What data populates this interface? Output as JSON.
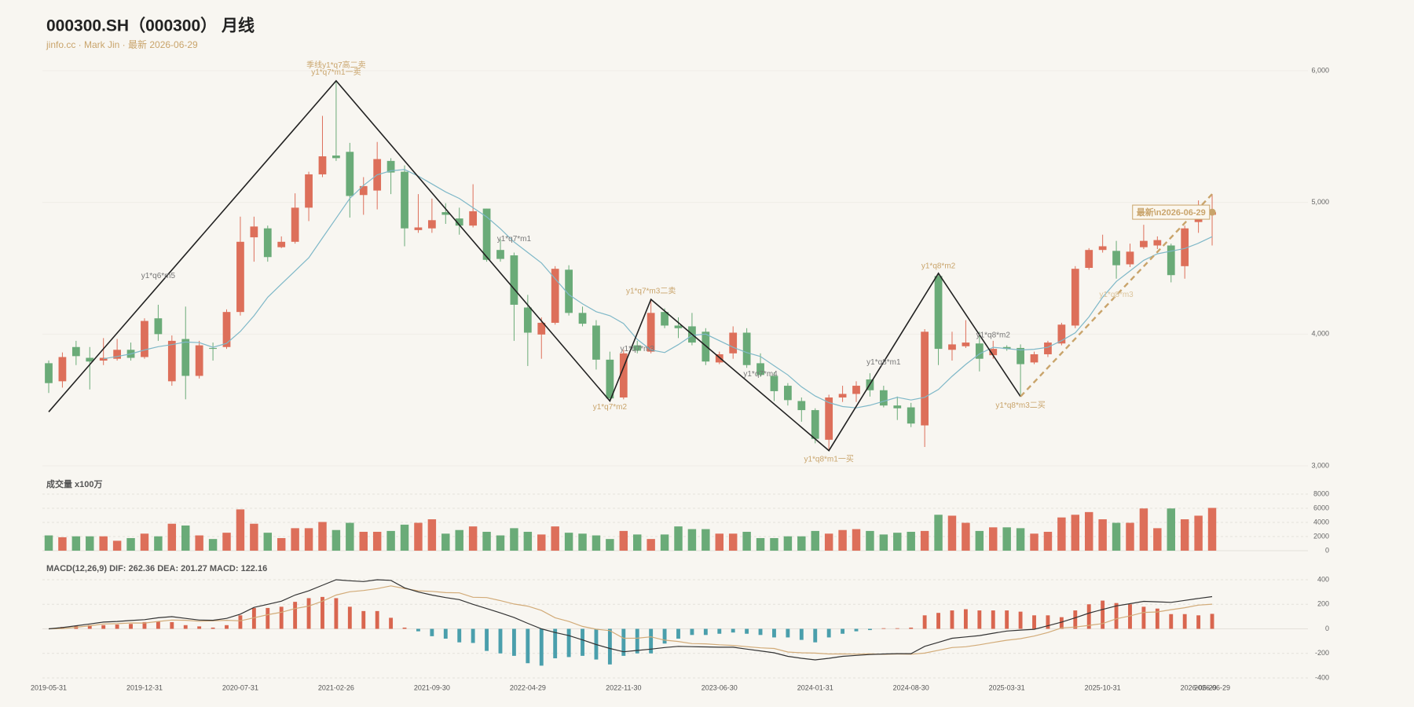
{
  "chart_data": [
    {
      "type": "candlestick",
      "title": "000300.SH（000300） 月线",
      "subtitle": "jinfo.cc · Mark Jin · 最新 2026-06-29",
      "categories": [
        "2019-05-31",
        null,
        null,
        null,
        null,
        null,
        null,
        "2019-12-31",
        null,
        null,
        null,
        null,
        null,
        null,
        "2020-07-31",
        null,
        null,
        null,
        null,
        null,
        null,
        "2021-02-26",
        null,
        null,
        null,
        null,
        null,
        null,
        "2021-09-30",
        null,
        null,
        null,
        null,
        null,
        null,
        "2022-04-29",
        null,
        null,
        null,
        null,
        null,
        null,
        "2022-11-30",
        null,
        null,
        null,
        null,
        null,
        null,
        "2023-06-30",
        null,
        null,
        null,
        null,
        null,
        null,
        "2024-01-31",
        null,
        null,
        null,
        null,
        null,
        null,
        "2024-08-30",
        null,
        null,
        null,
        null,
        null,
        null,
        "2025-03-31",
        null,
        null,
        null,
        null,
        null,
        null,
        "2025-10-31",
        null,
        null,
        null,
        null,
        null,
        null,
        "2026-05-29",
        "2026-06-29"
      ],
      "open": [
        3779,
        3642,
        3902,
        3820,
        3799,
        3813,
        3881,
        3826,
        4120,
        3642,
        3963,
        3683,
        3895,
        3902,
        4168,
        4735,
        4803,
        4660,
        4701,
        4960,
        5213,
        5356,
        5384,
        5056,
        5090,
        5315,
        5233,
        4790,
        4803,
        4926,
        4878,
        4824,
        4953,
        4639,
        4598,
        4202,
        3997,
        4086,
        4489,
        4161,
        4065,
        3806,
        3519,
        3915,
        3867,
        4168,
        4065,
        4059,
        4018,
        3785,
        3854,
        4011,
        3779,
        3683,
        3608,
        3492,
        3423,
        3198,
        3519,
        3546,
        3656,
        3574,
        3458,
        3444,
        3307,
        4441,
        3881,
        3908,
        3929,
        3840,
        3902,
        3895,
        3785,
        3847,
        3929,
        4065,
        4503,
        4639,
        4632,
        4530,
        4660,
        4673,
        4673,
        4516,
        4851,
        4906
      ],
      "high": [
        3800,
        3861,
        3949,
        3902,
        3970,
        3963,
        3936,
        4120,
        4223,
        3990,
        4209,
        3949,
        3936,
        4188,
        4892,
        4892,
        4824,
        4742,
        5069,
        5233,
        5657,
        5923,
        5452,
        5192,
        5459,
        5336,
        5281,
        5063,
        5029,
        4994,
        4960,
        5138,
        4953,
        4721,
        4619,
        4298,
        4127,
        4516,
        4523,
        4209,
        4106,
        3867,
        3881,
        3949,
        4264,
        4195,
        4127,
        4161,
        4045,
        3867,
        4059,
        4045,
        3854,
        3710,
        3628,
        3519,
        3437,
        3540,
        3608,
        3642,
        3703,
        3608,
        3526,
        3478,
        4038,
        4462,
        4018,
        4106,
        4018,
        3949,
        3915,
        3922,
        3867,
        3949,
        4086,
        4516,
        4653,
        4755,
        4708,
        4687,
        4830,
        4742,
        4687,
        4824,
        5015,
        5063
      ],
      "low": [
        3553,
        3594,
        3765,
        3580,
        3765,
        3799,
        3799,
        3813,
        3949,
        3608,
        3505,
        3663,
        3799,
        3888,
        4141,
        4550,
        4550,
        4653,
        4687,
        4858,
        5192,
        5315,
        4885,
        4906,
        4947,
        5063,
        4667,
        4769,
        4769,
        4837,
        4755,
        4810,
        4550,
        4550,
        3949,
        3758,
        3813,
        4072,
        4141,
        4059,
        3731,
        3492,
        3505,
        3854,
        3854,
        4045,
        3970,
        3915,
        3765,
        3772,
        3813,
        3744,
        3676,
        3492,
        3458,
        3335,
        3171,
        3116,
        3485,
        3485,
        3526,
        3444,
        3348,
        3294,
        3143,
        3765,
        3799,
        3895,
        3717,
        3813,
        3874,
        3540,
        3772,
        3826,
        3915,
        4045,
        4489,
        4619,
        4421,
        4509,
        4646,
        4646,
        4393,
        4421,
        4769,
        4673
      ],
      "close": [
        3628,
        3826,
        3833,
        3792,
        3820,
        3881,
        3820,
        4100,
        4000,
        3949,
        3683,
        3915,
        3888,
        4168,
        4701,
        4817,
        4585,
        4701,
        4960,
        5213,
        5350,
        5336,
        5049,
        5124,
        5329,
        5227,
        4803,
        4810,
        4865,
        4906,
        4824,
        4933,
        4564,
        4571,
        4223,
        4011,
        4086,
        4496,
        4161,
        4079,
        3806,
        3512,
        3854,
        3874,
        4161,
        4065,
        4045,
        3936,
        3792,
        3847,
        4011,
        3765,
        3690,
        3567,
        3499,
        3423,
        3205,
        3519,
        3546,
        3608,
        3574,
        3458,
        3437,
        3321,
        4018,
        3888,
        3922,
        3936,
        3813,
        3888,
        3888,
        3772,
        3847,
        3936,
        4072,
        4496,
        4639,
        4667,
        4523,
        4626,
        4708,
        4714,
        4448,
        4803,
        4892,
        4926
      ],
      "ma": [
        null,
        null,
        null,
        null,
        3813,
        3830,
        3850,
        3880,
        3905,
        3920,
        3940,
        3935,
        3900,
        3930,
        4020,
        4140,
        4280,
        4380,
        4480,
        4580,
        4730,
        4880,
        5030,
        5130,
        5210,
        5240,
        5250,
        5200,
        5140,
        5080,
        5030,
        4960,
        4890,
        4800,
        4700,
        4620,
        4540,
        4420,
        4300,
        4230,
        4170,
        4140,
        4080,
        3960,
        3880,
        3860,
        3920,
        3990,
        4000,
        3950,
        3900,
        3860,
        3830,
        3760,
        3690,
        3600,
        3530,
        3480,
        3450,
        3440,
        3460,
        3490,
        3520,
        3500,
        3520,
        3580,
        3680,
        3770,
        3850,
        3900,
        3890,
        3880,
        3885,
        3900,
        3950,
        4010,
        4130,
        4280,
        4400,
        4480,
        4560,
        4610,
        4630,
        4650,
        4690,
        4740
      ],
      "up_color": "#dd6f5a",
      "down_color": "#6aab78",
      "ma_color": "#7fb8c8",
      "ylim": [
        3000,
        6000
      ],
      "yticks": [
        {
          "value": 3000,
          "label": "3,000"
        },
        {
          "value": 4000,
          "label": "4,000"
        },
        {
          "value": 5000,
          "label": "5,000"
        },
        {
          "value": 6000,
          "label": "6,000"
        }
      ],
      "zigzag": [
        {
          "index": 0,
          "price": 3410
        },
        {
          "index": 21,
          "price": 5923
        },
        {
          "index": 41,
          "price": 3492
        },
        {
          "index": 44,
          "price": 4264
        },
        {
          "index": 57,
          "price": 3116
        },
        {
          "index": 65,
          "price": 4462
        },
        {
          "index": 71,
          "price": 3526
        }
      ],
      "zigzag_color": "#222222",
      "trend": [
        {
          "index": 71,
          "price": 3526
        },
        {
          "index": 85,
          "price": 5063
        }
      ],
      "trend_color": "#c9a46b",
      "annotations": [
        {
          "text": "季线y1*q7高二卖",
          "index": 21,
          "price": 6040,
          "color": "#c9a46b"
        },
        {
          "text": "y1*q7*m1一卖",
          "index": 21,
          "price": 5985,
          "color": "#c9a46b"
        },
        {
          "text": "y1*q6*m5",
          "index": 8,
          "price": 4441,
          "color": "#777777"
        },
        {
          "text": "y1*q7*m1",
          "index": 34,
          "price": 4721,
          "color": "#777777"
        },
        {
          "text": "y1*q7*m3二卖",
          "index": 44,
          "price": 4325,
          "color": "#c9a46b"
        },
        {
          "text": "y1*q7*m2",
          "index": 41,
          "price": 3444,
          "color": "#c9a46b"
        },
        {
          "text": "y1*q7*m3",
          "index": 43,
          "price": 3888,
          "color": "#777777"
        },
        {
          "text": "y1*q7*m4",
          "index": 52,
          "price": 3697,
          "color": "#777777"
        },
        {
          "text": "y1*q8*m1",
          "index": 61,
          "price": 3785,
          "color": "#777777"
        },
        {
          "text": "y1*q8*m1一买",
          "index": 57,
          "price": 3048,
          "color": "#c9a46b"
        },
        {
          "text": "y1*q8*m2",
          "index": 65,
          "price": 4516,
          "color": "#c9a46b"
        },
        {
          "text": "y1*q8*m2",
          "index": 69,
          "price": 3990,
          "color": "#777777"
        },
        {
          "text": "y1*q8*m3二买",
          "index": 71,
          "price": 3458,
          "color": "#c9a46b"
        },
        {
          "text": "y1*q8*m3",
          "index": 78,
          "price": 4298,
          "color": "#dcc59c"
        }
      ],
      "latest": {
        "text": "最新\\n2026-06-29",
        "index": 82,
        "price": 4926,
        "color": "#c9a46b"
      }
    },
    {
      "type": "bar",
      "title": "成交量 x100万",
      "values": [
        2160,
        1900,
        2030,
        2030,
        2030,
        1400,
        1780,
        2410,
        2030,
        3810,
        3560,
        2160,
        1650,
        2540,
        5840,
        3810,
        2540,
        1780,
        3180,
        3180,
        4060,
        2920,
        3940,
        2670,
        2670,
        2790,
        3680,
        3940,
        4440,
        2410,
        2920,
        3430,
        2670,
        2160,
        3180,
        2670,
        2290,
        3430,
        2540,
        2410,
        2160,
        1650,
        2790,
        2290,
        1650,
        2290,
        3430,
        3050,
        3050,
        2410,
        2410,
        2670,
        1780,
        1780,
        2030,
        2030,
        2790,
        2410,
        2920,
        3050,
        2790,
        2290,
        2540,
        2670,
        2790,
        5080,
        4950,
        3940,
        2790,
        3300,
        3300,
        3180,
        2410,
        2670,
        4700,
        5080,
        5460,
        4440,
        3940,
        3940,
        5970,
        3180,
        5970,
        4440,
        4950,
        6050
      ],
      "up_color": "#dd6f5a",
      "down_color": "#6aab78",
      "ylim": [
        0,
        8000
      ],
      "yticks": [
        0,
        2000,
        4000,
        6000,
        8000
      ],
      "grid": true
    },
    {
      "type": "macd",
      "title": "MACD(12,26,9) DIF: 262.36 DEA: 201.27 MACD: 122.16",
      "dif": [
        0,
        10,
        25,
        40,
        55,
        60,
        68,
        75,
        90,
        99,
        85,
        72,
        70,
        85,
        120,
        175,
        200,
        225,
        275,
        310,
        355,
        400,
        392,
        385,
        400,
        395,
        334,
        300,
        275,
        255,
        238,
        200,
        165,
        130,
        92,
        45,
        0,
        -30,
        -55,
        -90,
        -128,
        -160,
        -187,
        -176,
        -165,
        -152,
        -143,
        -145,
        -147,
        -150,
        -150,
        -165,
        -180,
        -195,
        -224,
        -240,
        -253,
        -240,
        -224,
        -216,
        -209,
        -205,
        -202,
        -202,
        -143,
        -110,
        -77,
        -66,
        -55,
        -36,
        -18,
        -10,
        -4,
        25,
        55,
        90,
        128,
        158,
        187,
        205,
        224,
        220,
        216,
        232,
        248,
        262.36
      ],
      "dea": [
        0,
        2.5,
        12.5,
        25,
        40,
        42.5,
        48,
        47.5,
        60,
        71.5,
        70,
        62,
        65,
        70,
        65,
        90,
        115,
        135,
        165,
        185,
        225,
        275,
        302,
        312.5,
        327.5,
        350,
        329,
        310,
        305,
        295,
        293,
        257.5,
        255,
        230,
        202,
        185,
        150,
        90,
        60,
        20,
        -3,
        -15,
        -77,
        -76,
        -65,
        -92,
        -103,
        -120,
        -122,
        -130,
        -135,
        -145,
        -155,
        -160,
        -189,
        -195,
        -198,
        -205,
        -204,
        -206,
        -204,
        -207.5,
        -204.5,
        -207,
        -198,
        -175,
        -152,
        -146,
        -130,
        -111,
        -93,
        -80,
        -59,
        -30,
        7.5,
        15,
        28,
        43,
        82,
        105,
        134,
        137.5,
        156,
        172,
        193,
        201.27
      ],
      "hist": [
        0,
        15,
        25,
        30,
        30,
        35,
        40,
        55,
        60,
        55,
        30,
        20,
        10,
        30,
        110,
        170,
        170,
        180,
        220,
        250,
        260,
        250,
        180,
        145,
        145,
        90,
        10,
        -20,
        -60,
        -80,
        -110,
        -115,
        -180,
        -200,
        -220,
        -280,
        -300,
        -240,
        -230,
        -220,
        -250,
        -290,
        -220,
        -200,
        -200,
        -120,
        -80,
        -50,
        -50,
        -40,
        -30,
        -40,
        -50,
        -70,
        -70,
        -90,
        -110,
        -70,
        -40,
        -20,
        -10,
        5,
        5,
        10,
        110,
        130,
        150,
        160,
        150,
        150,
        150,
        140,
        110,
        110,
        95,
        150,
        200,
        230,
        210,
        200,
        180,
        165,
        120,
        120,
        110,
        122.16
      ],
      "dif_color": "#333333",
      "dea_color": "#d2ab78",
      "pos_color": "#d9664f",
      "neg_color": "#4a9fac",
      "ylim": [
        -400,
        400
      ],
      "yticks": [
        400,
        200,
        0,
        -200,
        -400
      ],
      "grid": true
    }
  ]
}
